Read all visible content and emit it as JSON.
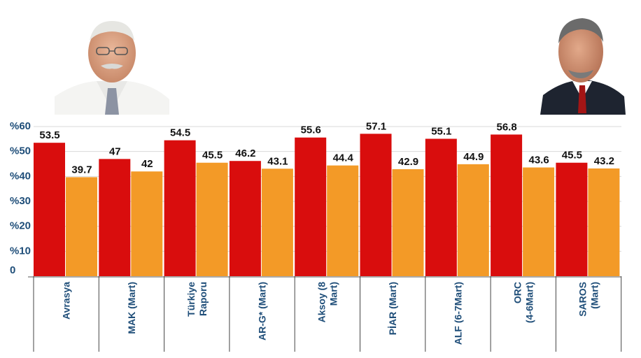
{
  "chart_data": {
    "type": "bar",
    "categories": [
      "Avrasya",
      "MAK (Mart)",
      "Türkiye Raporu",
      "AR-G* (Mart)",
      "Aksoy (8 Mart)",
      "PİAR (Mart)",
      "ALF (6-7Mart)",
      "ORC (4-6Mart)",
      "SAROS (Mart)"
    ],
    "category_lines": [
      [
        "Avrasya"
      ],
      [
        "MAK (Mart)"
      ],
      [
        "Türkiye",
        "Raporu"
      ],
      [
        "AR-G* (Mart)"
      ],
      [
        "Aksoy (8",
        "Mart)"
      ],
      [
        "PİAR (Mart)"
      ],
      [
        "ALF (6-7Mart)"
      ],
      [
        "ORC",
        "(4-6Mart)"
      ],
      [
        "SAROS",
        "(Mart)"
      ]
    ],
    "series": [
      {
        "values": [
          53.5,
          47,
          54.5,
          46.2,
          55.6,
          57.1,
          55.1,
          56.8,
          45.5
        ],
        "color": "#d90d0d"
      },
      {
        "values": [
          39.7,
          42,
          45.5,
          43.1,
          44.4,
          42.9,
          44.9,
          43.6,
          43.2
        ],
        "color": "#f39a27"
      }
    ],
    "value_labels": [
      [
        "53.5",
        "47",
        "54.5",
        "46.2",
        "55.6",
        "57.1",
        "55.1",
        "56.8",
        "45.5"
      ],
      [
        "39.7",
        "42",
        "45.5",
        "43.1",
        "44.4",
        "42.9",
        "44.9",
        "43.6",
        "43.2"
      ]
    ],
    "y_ticks": [
      "%60",
      "%50",
      "%40",
      "%30",
      "%20",
      "%10",
      "0"
    ],
    "ylim": [
      0,
      60
    ],
    "grid": true,
    "legend": "none",
    "title": "",
    "xlabel": "",
    "ylabel": ""
  },
  "colors": {
    "axis_text": "#1f4e79",
    "grid": "#d9d9d9"
  },
  "images": {
    "left": "portrait-left",
    "right": "portrait-right"
  }
}
